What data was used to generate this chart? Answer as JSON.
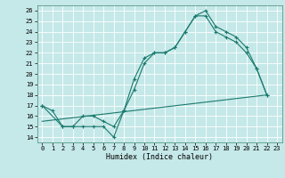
{
  "title": "",
  "xlabel": "Humidex (Indice chaleur)",
  "bg_color": "#c5e8e8",
  "grid_color": "#ffffff",
  "line_color": "#1a7a6e",
  "xlim": [
    -0.5,
    23.5
  ],
  "ylim": [
    13.5,
    26.5
  ],
  "xticks": [
    0,
    1,
    2,
    3,
    4,
    5,
    6,
    7,
    8,
    9,
    10,
    11,
    12,
    13,
    14,
    15,
    16,
    17,
    18,
    19,
    20,
    21,
    22,
    23
  ],
  "yticks": [
    14,
    15,
    16,
    17,
    18,
    19,
    20,
    21,
    22,
    23,
    24,
    25,
    26
  ],
  "line1_x": [
    0,
    1,
    2,
    3,
    4,
    5,
    6,
    7,
    8,
    9,
    10,
    11,
    12,
    13,
    14,
    15,
    16,
    17,
    18,
    19,
    20,
    21,
    22
  ],
  "line1_y": [
    17.0,
    16.5,
    15.0,
    15.0,
    15.0,
    15.0,
    15.0,
    14.0,
    16.5,
    18.5,
    21.0,
    22.0,
    22.0,
    22.5,
    24.0,
    25.5,
    26.0,
    24.5,
    24.0,
    23.5,
    22.5,
    20.5,
    18.0
  ],
  "line2_x": [
    0,
    2,
    3,
    4,
    5,
    6,
    7,
    8,
    9,
    10,
    11,
    12,
    13,
    14,
    15,
    16,
    17,
    18,
    19,
    20,
    21,
    22
  ],
  "line2_y": [
    17.0,
    15.0,
    15.0,
    16.0,
    16.0,
    15.5,
    15.0,
    16.5,
    19.5,
    21.5,
    22.0,
    22.0,
    22.5,
    24.0,
    25.5,
    25.5,
    24.0,
    23.5,
    23.0,
    22.0,
    20.5,
    18.0
  ],
  "line3_x": [
    0,
    22
  ],
  "line3_y": [
    15.5,
    18.0
  ]
}
